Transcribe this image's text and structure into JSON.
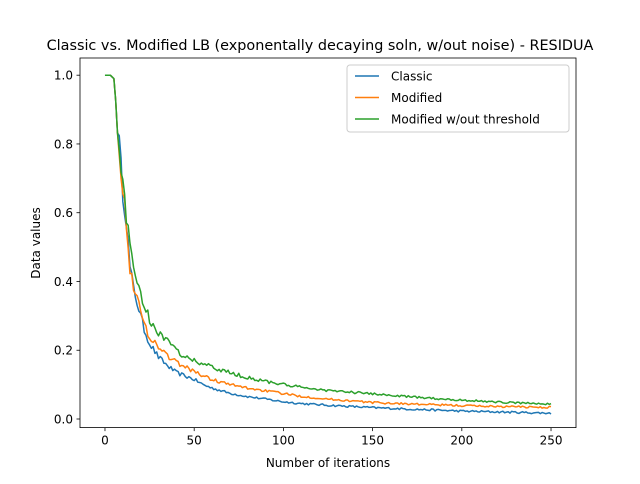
{
  "chart_data": {
    "type": "line",
    "title": "Classic vs. Modified LB (exponentally decaying soln, w/out noise) - RESIDUA",
    "xlabel": "Number of iterations",
    "ylabel": "Data values",
    "xlim": [
      -14,
      264
    ],
    "ylim": [
      -0.025,
      1.05
    ],
    "xticks": [
      0,
      50,
      100,
      150,
      200,
      250
    ],
    "xtick_labels": [
      "0",
      "50",
      "100",
      "150",
      "200",
      "250"
    ],
    "yticks": [
      0.0,
      0.2,
      0.4,
      0.6,
      0.8,
      1.0
    ],
    "ytick_labels": [
      "0.0",
      "0.2",
      "0.4",
      "0.6",
      "0.8",
      "1.0"
    ],
    "grid": false,
    "legend_position": "top-right",
    "series": [
      {
        "name": "Classic",
        "color": "#1f77b4",
        "points": [
          [
            0,
            1.0
          ],
          [
            3,
            1.0
          ],
          [
            5,
            0.99
          ],
          [
            8,
            0.8
          ],
          [
            10,
            0.66
          ],
          [
            12,
            0.58
          ],
          [
            14,
            0.44
          ],
          [
            16,
            0.38
          ],
          [
            18,
            0.34
          ],
          [
            20,
            0.3
          ],
          [
            22,
            0.26
          ],
          [
            25,
            0.22
          ],
          [
            30,
            0.18
          ],
          [
            35,
            0.155
          ],
          [
            40,
            0.135
          ],
          [
            45,
            0.125
          ],
          [
            50,
            0.115
          ],
          [
            55,
            0.1
          ],
          [
            60,
            0.09
          ],
          [
            70,
            0.075
          ],
          [
            80,
            0.065
          ],
          [
            90,
            0.058
          ],
          [
            100,
            0.05
          ],
          [
            110,
            0.045
          ],
          [
            125,
            0.04
          ],
          [
            150,
            0.033
          ],
          [
            175,
            0.028
          ],
          [
            200,
            0.023
          ],
          [
            225,
            0.02
          ],
          [
            250,
            0.017
          ]
        ]
      },
      {
        "name": "Modified",
        "color": "#ff7f0e",
        "points": [
          [
            0,
            1.0
          ],
          [
            3,
            1.0
          ],
          [
            5,
            0.99
          ],
          [
            8,
            0.8
          ],
          [
            10,
            0.66
          ],
          [
            12,
            0.57
          ],
          [
            14,
            0.44
          ],
          [
            16,
            0.39
          ],
          [
            18,
            0.35
          ],
          [
            20,
            0.31
          ],
          [
            22,
            0.275
          ],
          [
            25,
            0.24
          ],
          [
            30,
            0.21
          ],
          [
            35,
            0.185
          ],
          [
            40,
            0.165
          ],
          [
            45,
            0.15
          ],
          [
            50,
            0.14
          ],
          [
            55,
            0.125
          ],
          [
            60,
            0.115
          ],
          [
            70,
            0.1
          ],
          [
            80,
            0.09
          ],
          [
            90,
            0.082
          ],
          [
            100,
            0.074
          ],
          [
            110,
            0.066
          ],
          [
            125,
            0.058
          ],
          [
            150,
            0.048
          ],
          [
            175,
            0.043
          ],
          [
            200,
            0.039
          ],
          [
            225,
            0.036
          ],
          [
            250,
            0.034
          ]
        ]
      },
      {
        "name": "Modified w/out threshold",
        "color": "#2ca02c",
        "points": [
          [
            0,
            1.0
          ],
          [
            3,
            1.0
          ],
          [
            5,
            0.99
          ],
          [
            8,
            0.8
          ],
          [
            10,
            0.68
          ],
          [
            12,
            0.58
          ],
          [
            14,
            0.51
          ],
          [
            16,
            0.45
          ],
          [
            18,
            0.4
          ],
          [
            20,
            0.37
          ],
          [
            22,
            0.33
          ],
          [
            25,
            0.29
          ],
          [
            30,
            0.25
          ],
          [
            35,
            0.225
          ],
          [
            40,
            0.2
          ],
          [
            45,
            0.18
          ],
          [
            50,
            0.17
          ],
          [
            55,
            0.16
          ],
          [
            60,
            0.15
          ],
          [
            70,
            0.135
          ],
          [
            80,
            0.12
          ],
          [
            90,
            0.11
          ],
          [
            100,
            0.1
          ],
          [
            110,
            0.092
          ],
          [
            125,
            0.083
          ],
          [
            150,
            0.073
          ],
          [
            175,
            0.063
          ],
          [
            200,
            0.055
          ],
          [
            225,
            0.048
          ],
          [
            250,
            0.044
          ]
        ]
      }
    ]
  }
}
